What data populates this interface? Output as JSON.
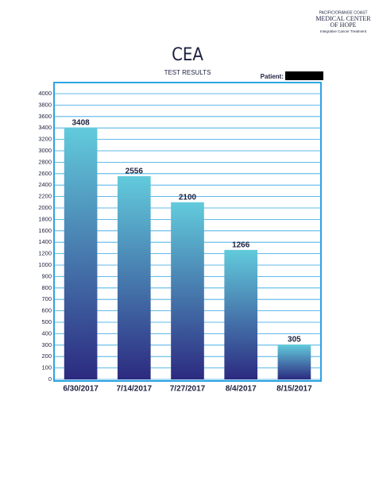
{
  "chart_data": {
    "type": "bar",
    "title": "CEA",
    "subtitle": "TEST RESULTS",
    "categories": [
      "6/30/2017",
      "7/14/2017",
      "7/27/2017",
      "8/4/2017",
      "8/15/2017"
    ],
    "values": [
      3408,
      2556,
      2100,
      1266,
      305
    ],
    "gradient": [
      "#62cbdc",
      "#2c2a80"
    ],
    "ylim": [
      0,
      4000
    ],
    "yticks": [
      0,
      100,
      200,
      300,
      400,
      500,
      600,
      700,
      800,
      900,
      1000,
      1200,
      1400,
      1600,
      1800,
      2000,
      2200,
      2400,
      2600,
      2800,
      3000,
      3200,
      3400,
      3600,
      3800,
      4000
    ],
    "grid": true,
    "grid_color": "#2ea3e2"
  },
  "patient_label": "Patient:",
  "logo": {
    "line1": "PACIFIC/ORANGE COAST",
    "line2": "MEDICAL CENTER",
    "line3": "OF HOPE",
    "line4": "Integrative Cancer Treatment"
  }
}
